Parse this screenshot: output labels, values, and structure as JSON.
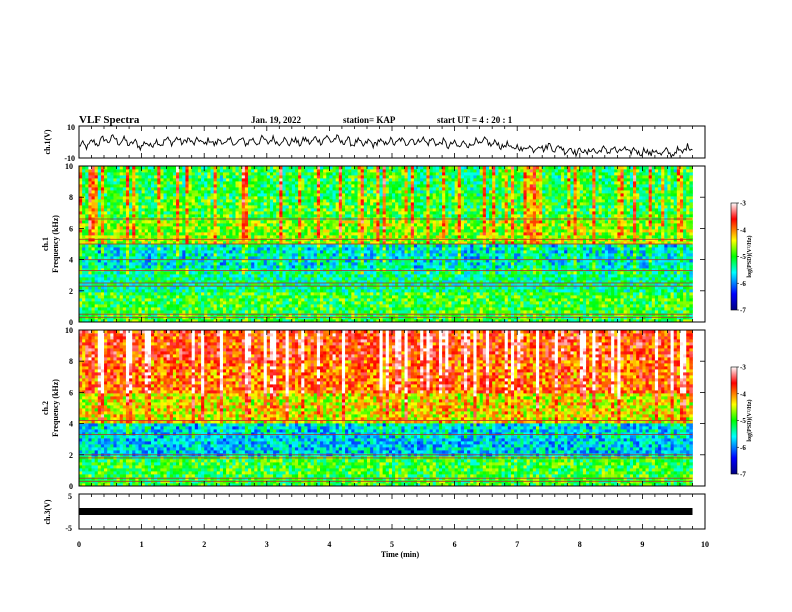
{
  "header": {
    "title": "VLF Spectra",
    "date": "Jan. 19, 2022",
    "station": "station= KAP",
    "start_ut": "start  UT =   4 : 20 : 1"
  },
  "chart_data": [
    {
      "type": "line",
      "ylabel": "ch.1(V)",
      "ylim": [
        -10,
        10
      ],
      "ytick_labels": [
        "-10",
        "10"
      ],
      "x": [
        0,
        0.5,
        1,
        1.5,
        2,
        2.5,
        3,
        3.5,
        4,
        4.5,
        5,
        5.5,
        6,
        6.5,
        7,
        7.5,
        8,
        8.5,
        9,
        9.5,
        9.8
      ],
      "values": [
        -3,
        2,
        -2,
        1,
        0,
        0,
        1,
        0,
        2,
        -1,
        0,
        1,
        -2,
        0,
        -4,
        -3,
        -6,
        -5,
        -6,
        -7,
        -3
      ]
    },
    {
      "type": "heatmap",
      "ylabel": "ch.1\nFrequency (kHz)",
      "ylim": [
        0,
        10
      ],
      "ytick_labels": [
        "0",
        "2",
        "4",
        "6",
        "8",
        "10"
      ],
      "colorbar": {
        "label": "log(PSD)(V²/Hz)",
        "range": [
          -7,
          -3
        ],
        "ticks": [
          "-3",
          "-4",
          "-5",
          "-6",
          "-7"
        ]
      },
      "bands": [
        {
          "f": [
            0,
            2
          ],
          "level": -5.0
        },
        {
          "f": [
            2,
            3.5
          ],
          "level": -5.3
        },
        {
          "f": [
            3.5,
            5
          ],
          "level": -5.6
        },
        {
          "f": [
            5,
            6.5
          ],
          "level": -4.7
        },
        {
          "f": [
            6.5,
            8
          ],
          "level": -5.0
        },
        {
          "f": [
            8,
            10
          ],
          "level": -5.1
        }
      ],
      "lines_khz": [
        0.3,
        0.5,
        2.3,
        2.5,
        3.3,
        4.0,
        5.0,
        5.3,
        6.6
      ],
      "xlim": [
        0,
        9.8
      ]
    },
    {
      "type": "heatmap",
      "ylabel": "ch.2\nFrequency (kHz)",
      "ylim": [
        0,
        10
      ],
      "ytick_labels": [
        "0",
        "2",
        "4",
        "6",
        "8",
        "10"
      ],
      "colorbar": {
        "label": "log(PSD)(V²/Hz)",
        "range": [
          -7,
          -3
        ],
        "ticks": [
          "-3",
          "-4",
          "-5",
          "-6",
          "-7"
        ]
      },
      "bands": [
        {
          "f": [
            0,
            2
          ],
          "level": -5.0
        },
        {
          "f": [
            2,
            4
          ],
          "level": -5.7
        },
        {
          "f": [
            4,
            6
          ],
          "level": -4.4
        },
        {
          "f": [
            6,
            8
          ],
          "level": -3.9
        },
        {
          "f": [
            8,
            10
          ],
          "level": -3.7
        }
      ],
      "lines_khz": [
        0.3,
        0.5,
        1.8,
        2.0,
        3.3,
        4.2
      ],
      "xlim": [
        0,
        9.8
      ]
    },
    {
      "type": "line",
      "ylabel": "ch.3(V)",
      "ylim": [
        -5,
        5
      ],
      "ytick_labels": [
        "-5",
        "5"
      ],
      "x": [
        0,
        9.8
      ],
      "values": [
        0,
        0
      ],
      "xlabel": "Time  (min)",
      "xlim": [
        0,
        10
      ],
      "xtick_labels": [
        "0",
        "1",
        "2",
        "3",
        "4",
        "5",
        "6",
        "7",
        "8",
        "9",
        "10"
      ]
    }
  ]
}
